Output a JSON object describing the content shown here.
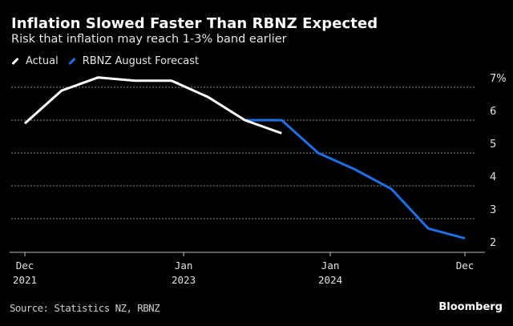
{
  "chart_data": {
    "type": "line",
    "title": "Inflation Slowed Faster Than RBNZ Expected",
    "subtitle": "Risk that inflation may reach 1-3% band earlier",
    "x_ticks": [
      {
        "month": "Dec",
        "year": "2021",
        "q": 0
      },
      {
        "month": "Jan",
        "year": "2023",
        "q": 4.33
      },
      {
        "month": "Jan",
        "year": "2024",
        "q": 8.33
      },
      {
        "month": "Dec",
        "year": "",
        "q": 12
      }
    ],
    "y_ticks": [
      "2",
      "3",
      "4",
      "5",
      "6",
      "7%"
    ],
    "ylim": [
      2,
      7
    ],
    "grid": true,
    "legend_position": "top-left",
    "series": [
      {
        "name": "Actual",
        "color": "#ffffff",
        "x": [
          0,
          1,
          2,
          3,
          4,
          5,
          6,
          7
        ],
        "values": [
          5.9,
          6.9,
          7.3,
          7.2,
          7.2,
          6.7,
          6.0,
          5.6
        ]
      },
      {
        "name": "RBNZ August Forecast",
        "color": "#1f6fe5",
        "x": [
          6,
          7,
          8,
          9,
          10,
          11,
          12
        ],
        "values": [
          6.0,
          6.0,
          5.0,
          4.5,
          3.9,
          2.7,
          2.4
        ]
      }
    ]
  },
  "footer": {
    "source": "Source: Statistics NZ, RBNZ",
    "brand": "Bloomberg"
  }
}
